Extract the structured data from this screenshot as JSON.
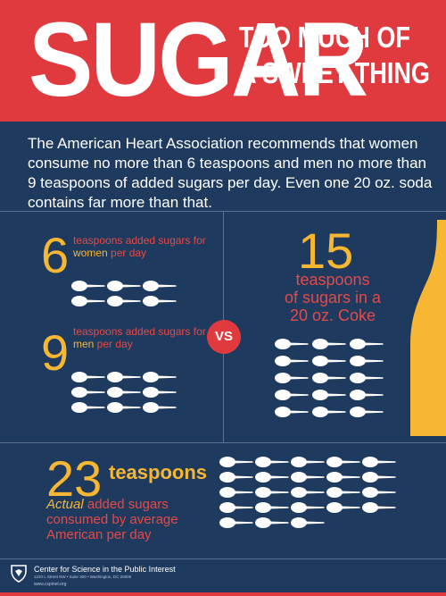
{
  "header": {
    "title": "SUGAR",
    "subtitle_line1": "TOO MUCH OF",
    "subtitle_line2": "A SWEET THING"
  },
  "intro": "The American Heart Association recommends that women consume no more than 6 teaspoons and men no more than 9 teaspoons of added sugars per day. Even one 20 oz. soda contains far more than that.",
  "women": {
    "count": "6",
    "label_pre": "teaspoons added sugars for ",
    "label_hl": "women",
    "label_post": " per day",
    "spoons": 6
  },
  "men": {
    "count": "9",
    "label_pre": "teaspoons added sugars for ",
    "label_hl": "men",
    "label_post": " per day",
    "spoons": 9
  },
  "vs": "VS",
  "coke": {
    "count": "15",
    "label_line1": "teaspoons",
    "label_line2": "of sugars in a",
    "label_line3": "20 oz. Coke",
    "spoons": 15
  },
  "american": {
    "count": "23",
    "headline": "teaspoons",
    "label_em": "Actual",
    "label_rest": " added sugars consumed by average American per day",
    "spoons": 23
  },
  "footer": {
    "org": "Center for Science in the Public Interest",
    "address": "1220 L Street NW • Suite 300 • Washington, DC 20005",
    "url": "www.cspinet.org"
  },
  "colors": {
    "red": "#e03a3e",
    "navy": "#1e3a5f",
    "yellow": "#f7b733",
    "spoon": "#ffffff"
  },
  "icons": {
    "spoon": "teaspoon-icon",
    "bottle": "soda-bottle-icon",
    "logo": "cspi-logo-icon"
  }
}
